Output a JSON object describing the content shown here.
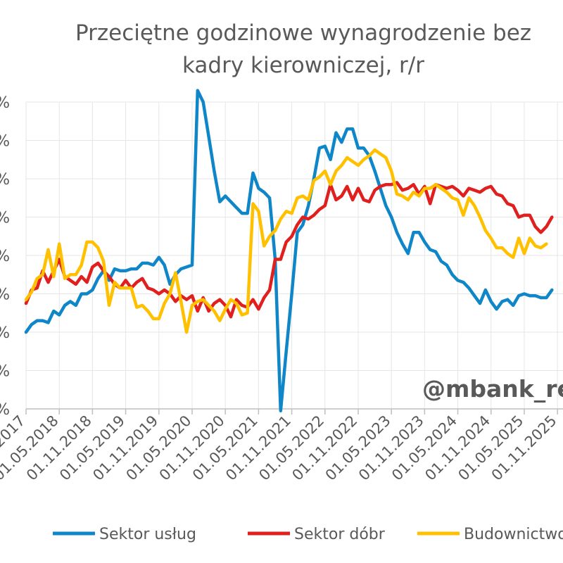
{
  "chart_data": {
    "type": "line",
    "title_lines": [
      "Przeciętne godzinowe wynagrodzenie bez",
      "kadry kierowniczej, r/r"
    ],
    "watermark": "@mbank_re",
    "y_tick_labels": [
      "%",
      "%",
      "%",
      "%",
      "%",
      "%",
      "%",
      "%",
      "%"
    ],
    "x_tick_labels": [
      "01.11.2017",
      "01.05.2018",
      "01.11.2018",
      "01.05.2019",
      "01.11.2019",
      "01.05.2020",
      "01.11.2020",
      "01.05.2021",
      "01.11.2021",
      "01.05.2022",
      "01.11.2022",
      "01.05.2023",
      "01.11.2023",
      "01.05.2024",
      "01.11.2024",
      "01.05.2025",
      "01.11.2025"
    ],
    "x_start": "2017-11",
    "ylim": [
      0,
      8
    ],
    "grid": true,
    "legend_position": "bottom",
    "series": [
      {
        "name": "Sektor usług",
        "color": "#0E86C8",
        "values": [
          2.0,
          2.2,
          2.3,
          2.3,
          2.25,
          2.55,
          2.45,
          2.7,
          2.8,
          2.7,
          3.0,
          3.0,
          3.1,
          3.4,
          3.6,
          3.35,
          3.65,
          3.6,
          3.6,
          3.65,
          3.65,
          3.8,
          3.8,
          3.75,
          3.95,
          3.75,
          3.25,
          3.5,
          3.65,
          3.7,
          3.75,
          8.3,
          8.0,
          7.1,
          6.2,
          5.4,
          5.55,
          5.4,
          5.25,
          5.1,
          5.1,
          6.15,
          5.75,
          5.65,
          5.5,
          3.9,
          -0.05,
          1.5,
          3.0,
          4.6,
          4.8,
          5.3,
          6.0,
          6.8,
          6.85,
          6.5,
          7.2,
          6.95,
          7.3,
          7.3,
          6.8,
          6.8,
          6.6,
          6.2,
          5.75,
          5.3,
          5.0,
          4.6,
          4.3,
          4.05,
          4.6,
          4.6,
          4.35,
          4.15,
          4.1,
          3.85,
          3.75,
          3.5,
          3.35,
          3.3,
          3.15,
          2.95,
          2.75,
          3.1,
          2.8,
          2.6,
          2.8,
          2.85,
          2.7,
          2.95,
          3.0,
          2.95,
          2.95,
          2.9,
          2.9,
          3.1
        ]
      },
      {
        "name": "Sektor dóbr",
        "color": "#E0201F",
        "values": [
          2.75,
          3.1,
          3.15,
          3.6,
          3.3,
          3.6,
          3.9,
          3.45,
          3.35,
          3.25,
          3.45,
          3.3,
          3.7,
          3.8,
          3.6,
          3.45,
          3.25,
          3.15,
          3.35,
          3.15,
          3.3,
          3.4,
          3.15,
          3.1,
          3.0,
          3.1,
          3.0,
          2.8,
          2.95,
          2.85,
          2.95,
          2.55,
          2.9,
          2.55,
          2.75,
          2.85,
          2.7,
          2.4,
          2.85,
          2.7,
          2.65,
          2.85,
          2.6,
          2.9,
          3.1,
          3.9,
          3.9,
          4.35,
          4.5,
          4.8,
          5.0,
          4.95,
          5.05,
          5.2,
          5.3,
          5.85,
          5.45,
          5.55,
          5.8,
          5.45,
          5.75,
          5.45,
          5.4,
          5.7,
          5.8,
          5.85,
          5.85,
          5.9,
          5.7,
          5.75,
          5.85,
          5.6,
          5.8,
          5.35,
          5.85,
          5.8,
          5.75,
          5.8,
          5.7,
          5.55,
          5.75,
          5.7,
          5.65,
          5.75,
          5.8,
          5.6,
          5.55,
          5.35,
          5.3,
          5.0,
          5.05,
          5.05,
          4.75,
          4.6,
          4.75,
          5.0
        ]
      },
      {
        "name": "Budownictwo",
        "color": "#FFC000",
        "values": [
          2.85,
          3.05,
          3.4,
          3.5,
          4.15,
          3.45,
          4.3,
          3.4,
          3.5,
          3.5,
          3.75,
          4.35,
          4.35,
          4.2,
          3.85,
          2.7,
          3.3,
          3.15,
          3.15,
          3.15,
          2.65,
          2.7,
          2.55,
          2.35,
          2.35,
          2.75,
          3.0,
          3.55,
          2.8,
          2.0,
          2.7,
          2.8,
          2.85,
          2.7,
          2.55,
          2.3,
          2.6,
          2.85,
          2.75,
          2.45,
          2.5,
          5.35,
          5.15,
          4.25,
          4.5,
          4.65,
          4.95,
          5.15,
          5.1,
          5.5,
          5.55,
          5.45,
          5.95,
          6.05,
          6.2,
          5.85,
          6.2,
          6.35,
          6.55,
          6.45,
          6.35,
          6.5,
          6.6,
          6.75,
          6.65,
          6.55,
          6.2,
          5.6,
          5.55,
          5.45,
          5.65,
          5.55,
          5.75,
          5.75,
          5.85,
          5.75,
          5.65,
          5.5,
          5.45,
          5.05,
          5.5,
          5.3,
          5.0,
          4.65,
          4.45,
          4.2,
          4.2,
          4.05,
          3.95,
          4.45,
          4.05,
          4.45,
          4.25,
          4.2,
          4.3
        ]
      }
    ]
  }
}
